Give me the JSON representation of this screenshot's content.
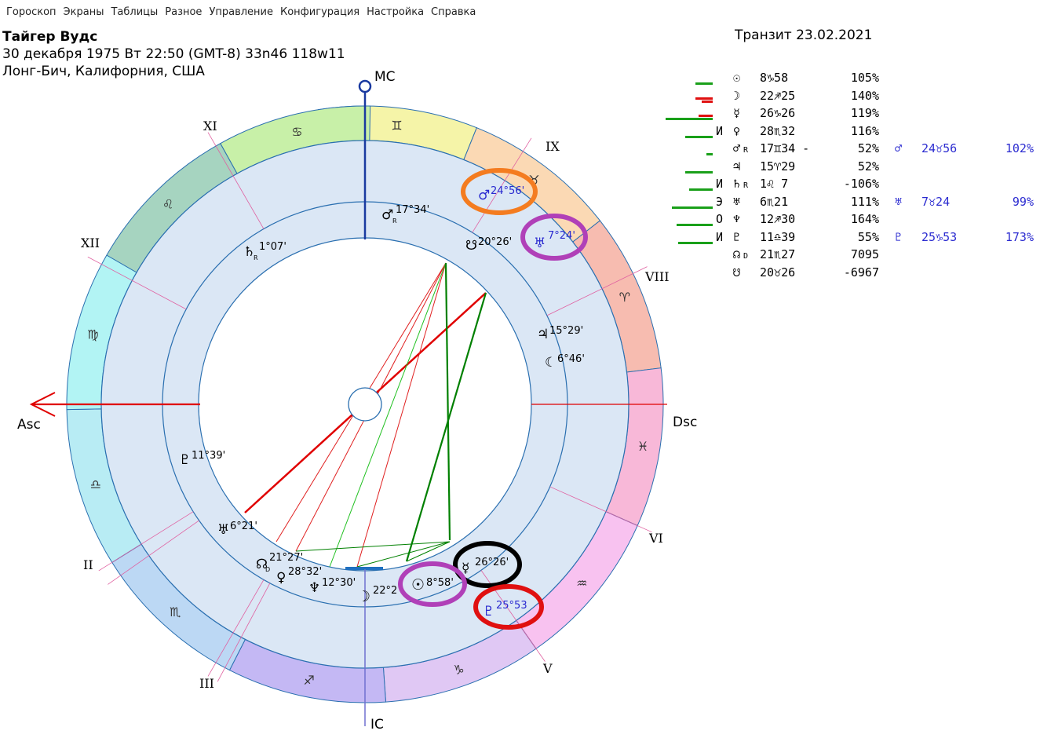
{
  "menu": [
    "Гороскоп",
    "Экраны",
    "Таблицы",
    "Разное",
    "Управление",
    "Конфигурация",
    "Настройка",
    "Справка"
  ],
  "header": {
    "name": "Тайгер Вудс",
    "date_line": "30 декабря 1975  Вт  22:50 (GMT-8) 33n46  118w11",
    "place": "Лонг-Бич, Калифорния, США",
    "transit": "Транзит 23.02.2021"
  },
  "chart": {
    "angles": {
      "mc": "MC",
      "ic": "IC",
      "asc": "Asc",
      "dsc": "Dsc"
    },
    "houses": [
      "XI",
      "IX",
      "XII",
      "VIII",
      "VI",
      "II",
      "V",
      "III"
    ],
    "natal_labels": [
      {
        "glyph": "♂",
        "retro": "R",
        "text": "17°34'"
      },
      {
        "glyph": "♄",
        "retro": "R",
        "text": "1°07'"
      },
      {
        "glyph": "☋",
        "retro": "",
        "text": "20°26'"
      },
      {
        "glyph": "♃",
        "retro": "",
        "text": "15°29'"
      },
      {
        "glyph": "☾",
        "retro": "",
        "text": "6°46'"
      },
      {
        "glyph": "♇",
        "retro": "",
        "text": "11°39'"
      },
      {
        "glyph": "♅",
        "retro": "",
        "text": "6°21'"
      },
      {
        "glyph": "☊",
        "retro": "D",
        "text": "21°27'"
      },
      {
        "glyph": "♀",
        "retro": "",
        "text": "28°32'"
      },
      {
        "glyph": "♆",
        "retro": "",
        "text": "12°30'"
      },
      {
        "glyph": "☽",
        "retro": "",
        "text": "22°2"
      },
      {
        "glyph": "☉",
        "retro": "",
        "text": "8°58'"
      },
      {
        "glyph": "☿",
        "retro": "",
        "text": "26°26'"
      }
    ],
    "transit_labels": [
      {
        "glyph": "♂",
        "text": "24°56'"
      },
      {
        "glyph": "♅",
        "text": "7°24'"
      },
      {
        "glyph": "♇",
        "text": "25°53"
      }
    ],
    "colors": {
      "ring_bg": "#dbe7f5",
      "asc_line": "#e00000",
      "mc_line": "#1a3aa0",
      "highlight_orange": "#f47c20",
      "highlight_purple": "#b040b8",
      "highlight_black": "#000000",
      "highlight_red": "#e01010"
    }
  },
  "planets": [
    {
      "flag": "",
      "sym": "☉",
      "retro": "",
      "pos": "8♑58",
      "pct": "105%",
      "tsym": "",
      "tpos": "",
      "tpct": "",
      "bars": [
        {
          "w": 22,
          "c": "#1aa01a"
        }
      ]
    },
    {
      "flag": "",
      "sym": "☽",
      "retro": "",
      "pos": "22♐25",
      "pct": "140%",
      "tsym": "",
      "tpos": "",
      "tpct": "",
      "bars": [
        {
          "w": 14,
          "c": "#e01010"
        },
        {
          "w": 22,
          "c": "#e01010"
        }
      ]
    },
    {
      "flag": "",
      "sym": "☿",
      "retro": "",
      "pos": "26♑26",
      "pct": "119%",
      "tsym": "",
      "tpos": "",
      "tpct": "",
      "bars": [
        {
          "w": 60,
          "c": "#1aa01a"
        },
        {
          "w": 18,
          "c": "#e01010"
        }
      ]
    },
    {
      "flag": "И",
      "sym": "♀",
      "retro": "",
      "pos": "28♏32",
      "pct": "116%",
      "tsym": "",
      "tpos": "",
      "tpct": "",
      "bars": [
        {
          "w": 35,
          "c": "#1aa01a"
        }
      ]
    },
    {
      "flag": "",
      "sym": "♂",
      "retro": "R",
      "pos": "17♊34 -",
      "pct": "52%",
      "tsym": "♂",
      "tpos": "24♉56",
      "tpct": "102%",
      "bars": [
        {
          "w": 8,
          "c": "#1aa01a"
        }
      ]
    },
    {
      "flag": "",
      "sym": "♃",
      "retro": "",
      "pos": "15♈29",
      "pct": "52%",
      "tsym": "",
      "tpos": "",
      "tpct": "",
      "bars": [
        {
          "w": 35,
          "c": "#1aa01a"
        }
      ]
    },
    {
      "flag": "И",
      "sym": "♄",
      "retro": "R",
      "pos": "1♌ 7",
      "pct": "-106%",
      "tsym": "",
      "tpos": "",
      "tpct": "",
      "bars": [
        {
          "w": 30,
          "c": "#1aa01a"
        }
      ]
    },
    {
      "flag": "Э",
      "sym": "♅",
      "retro": "",
      "pos": "6♏21",
      "pct": "111%",
      "tsym": "♅",
      "tpos": "7♉24",
      "tpct": "99%",
      "bars": [
        {
          "w": 52,
          "c": "#1aa01a"
        }
      ]
    },
    {
      "flag": "О",
      "sym": "♆",
      "retro": "",
      "pos": "12♐30",
      "pct": "164%",
      "tsym": "",
      "tpos": "",
      "tpct": "",
      "bars": [
        {
          "w": 46,
          "c": "#1aa01a"
        }
      ]
    },
    {
      "flag": "И",
      "sym": "♇",
      "retro": "",
      "pos": "11♎39",
      "pct": "55%",
      "tsym": "♇",
      "tpos": "25♑53",
      "tpct": "173%",
      "bars": [
        {
          "w": 44,
          "c": "#1aa01a"
        }
      ]
    },
    {
      "flag": "",
      "sym": "☊",
      "retro": "D",
      "pos": "21♏27",
      "pct": "7095",
      "tsym": "",
      "tpos": "",
      "tpct": "",
      "bars": []
    },
    {
      "flag": "",
      "sym": "☋",
      "retro": "",
      "pos": "20♉26",
      "pct": "-6967",
      "tsym": "",
      "tpos": "",
      "tpct": "",
      "bars": []
    }
  ]
}
